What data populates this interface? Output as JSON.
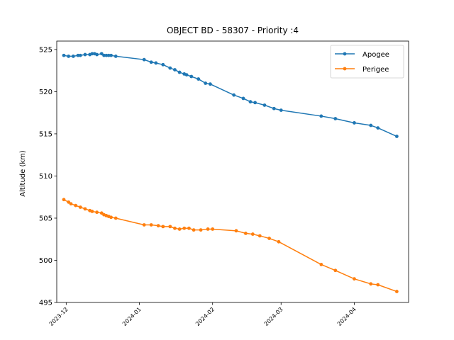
{
  "chart_data": {
    "type": "line",
    "title": "OBJECT BD - 58307 - Priority :4",
    "xlabel": "",
    "ylabel": "Altitude (km)",
    "ylim": [
      495,
      526
    ],
    "yticks": [
      495,
      500,
      505,
      510,
      515,
      520,
      525
    ],
    "xlim": [
      "2023-11-27",
      "2024-04-24"
    ],
    "xticks": [
      "2023-12",
      "2024-01",
      "2024-02",
      "2024-03",
      "2024-04"
    ],
    "legend": "top-right",
    "grid": false,
    "series": [
      {
        "name": "Apogee",
        "color": "#1f77b4",
        "points": [
          [
            "2023-11-30",
            524.3
          ],
          [
            "2023-12-02",
            524.2
          ],
          [
            "2023-12-04",
            524.2
          ],
          [
            "2023-12-06",
            524.3
          ],
          [
            "2023-12-07",
            524.3
          ],
          [
            "2023-12-09",
            524.4
          ],
          [
            "2023-12-11",
            524.4
          ],
          [
            "2023-12-12",
            524.5
          ],
          [
            "2023-12-13",
            524.5
          ],
          [
            "2023-12-14",
            524.4
          ],
          [
            "2023-12-16",
            524.5
          ],
          [
            "2023-12-17",
            524.3
          ],
          [
            "2023-12-18",
            524.3
          ],
          [
            "2023-12-19",
            524.3
          ],
          [
            "2023-12-20",
            524.3
          ],
          [
            "2023-12-22",
            524.2
          ],
          [
            "2024-01-03",
            523.8
          ],
          [
            "2024-01-06",
            523.5
          ],
          [
            "2024-01-08",
            523.4
          ],
          [
            "2024-01-11",
            523.2
          ],
          [
            "2024-01-14",
            522.8
          ],
          [
            "2024-01-16",
            522.6
          ],
          [
            "2024-01-18",
            522.3
          ],
          [
            "2024-01-20",
            522.1
          ],
          [
            "2024-01-21",
            522.0
          ],
          [
            "2024-01-23",
            521.8
          ],
          [
            "2024-01-26",
            521.5
          ],
          [
            "2024-01-29",
            521.0
          ],
          [
            "2024-01-31",
            520.9
          ],
          [
            "2024-02-10",
            519.6
          ],
          [
            "2024-02-14",
            519.2
          ],
          [
            "2024-02-17",
            518.8
          ],
          [
            "2024-02-19",
            518.7
          ],
          [
            "2024-02-23",
            518.4
          ],
          [
            "2024-02-27",
            518.0
          ],
          [
            "2024-03-01",
            517.8
          ],
          [
            "2024-03-18",
            517.1
          ],
          [
            "2024-03-24",
            516.8
          ],
          [
            "2024-04-01",
            516.3
          ],
          [
            "2024-04-08",
            516.0
          ],
          [
            "2024-04-11",
            515.7
          ],
          [
            "2024-04-19",
            514.7
          ]
        ]
      },
      {
        "name": "Perigee",
        "color": "#ff7f0e",
        "points": [
          [
            "2023-11-30",
            507.2
          ],
          [
            "2023-12-02",
            506.9
          ],
          [
            "2023-12-03",
            506.7
          ],
          [
            "2023-12-05",
            506.5
          ],
          [
            "2023-12-07",
            506.3
          ],
          [
            "2023-12-09",
            506.1
          ],
          [
            "2023-12-11",
            505.9
          ],
          [
            "2023-12-12",
            505.8
          ],
          [
            "2023-12-14",
            505.7
          ],
          [
            "2023-12-16",
            505.6
          ],
          [
            "2023-12-17",
            505.4
          ],
          [
            "2023-12-18",
            505.3
          ],
          [
            "2023-12-19",
            505.2
          ],
          [
            "2023-12-20",
            505.1
          ],
          [
            "2023-12-22",
            505.0
          ],
          [
            "2024-01-03",
            504.2
          ],
          [
            "2024-01-06",
            504.2
          ],
          [
            "2024-01-09",
            504.1
          ],
          [
            "2024-01-11",
            504.0
          ],
          [
            "2024-01-14",
            504.0
          ],
          [
            "2024-01-16",
            503.8
          ],
          [
            "2024-01-18",
            503.7
          ],
          [
            "2024-01-20",
            503.8
          ],
          [
            "2024-01-22",
            503.8
          ],
          [
            "2024-01-24",
            503.6
          ],
          [
            "2024-01-27",
            503.6
          ],
          [
            "2024-01-30",
            503.7
          ],
          [
            "2024-02-01",
            503.7
          ],
          [
            "2024-02-11",
            503.5
          ],
          [
            "2024-02-15",
            503.2
          ],
          [
            "2024-02-18",
            503.1
          ],
          [
            "2024-02-21",
            502.9
          ],
          [
            "2024-02-25",
            502.6
          ],
          [
            "2024-02-29",
            502.2
          ],
          [
            "2024-03-18",
            499.5
          ],
          [
            "2024-03-24",
            498.8
          ],
          [
            "2024-04-01",
            497.8
          ],
          [
            "2024-04-08",
            497.2
          ],
          [
            "2024-04-11",
            497.1
          ],
          [
            "2024-04-19",
            496.3
          ]
        ]
      }
    ]
  }
}
